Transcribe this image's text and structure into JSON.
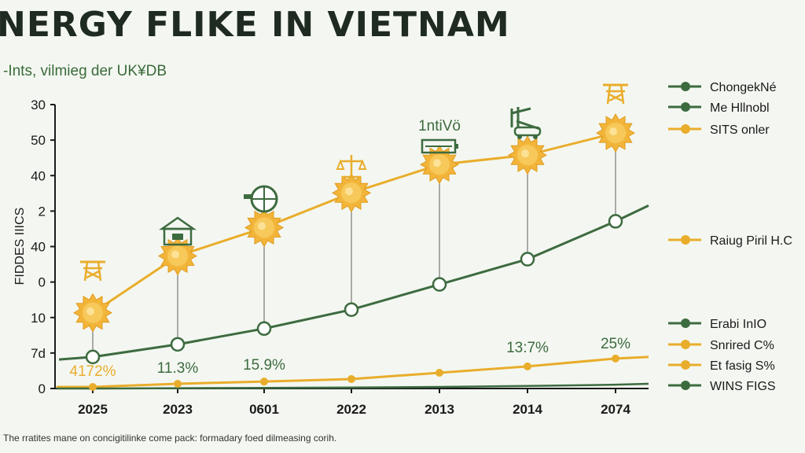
{
  "header": {
    "title": "NERGY FLIKE IN VIETNAM",
    "subtitle": "-Ints, vilmieg der UK¥DB"
  },
  "footnote": "The rratites mane on concigitilinke come pack: formadary foed dilmeasing corih.",
  "colors": {
    "orange": "#e9ad2c",
    "green": "#3d6b40",
    "axis": "#1a1a1a",
    "sun": "#f2b53a"
  },
  "chart_data": {
    "type": "line",
    "title": "NERGY FLIKE IN VIETNAM",
    "subtitle": "-Ints, vilmieg der UK¥DB",
    "ylabel": "FIDDES IIICS",
    "y_ticks": [
      "30",
      "50",
      "40",
      "2",
      "40",
      "0",
      "10",
      "7d",
      "0"
    ],
    "categories": [
      "2025",
      "2023",
      "0601",
      "2022",
      "2013",
      "2014",
      "2074"
    ],
    "series": [
      {
        "name": "SITS onler",
        "color": "#e9ad2c",
        "marker": "sun",
        "values": [
          2.4,
          4.2,
          5.1,
          6.2,
          7.1,
          7.4,
          8.1
        ]
      },
      {
        "name": "Me Hllnobl",
        "color": "#3d6b40",
        "marker": "circle",
        "values": [
          1.0,
          1.4,
          1.9,
          2.5,
          3.3,
          4.1,
          5.3
        ],
        "tail_value": 5.8
      },
      {
        "name": "Snrired C%",
        "color": "#e9ad2c",
        "marker": "dot",
        "values": [
          0.05,
          0.15,
          0.22,
          0.3,
          0.5,
          0.7,
          0.95
        ],
        "tail_value": 1.0
      },
      {
        "name": "WINS FIGS",
        "color": "#3d6b40",
        "marker": "none",
        "values": [
          0.0,
          0.01,
          0.02,
          0.03,
          0.05,
          0.08,
          0.12
        ],
        "tail_value": 0.15
      }
    ],
    "annotations": [
      {
        "category": "2025",
        "text": "4172%",
        "color": "#e9ad2c"
      },
      {
        "category": "2023",
        "text": "11.3%",
        "color": "#3d6b40"
      },
      {
        "category": "0601",
        "text": "15.9%",
        "color": "#3d6b40"
      },
      {
        "category": "2014",
        "text": "13:7%",
        "color": "#3d6b40"
      },
      {
        "category": "2074",
        "text": "25%",
        "color": "#3d6b40"
      },
      {
        "category": "2013",
        "text": "1ntiVö",
        "color": "#3d6b40",
        "small": true
      }
    ],
    "icons": [
      {
        "category": "2025",
        "name": "power-pylon-icon"
      },
      {
        "category": "2023",
        "name": "building-icon"
      },
      {
        "category": "0601",
        "name": "globe-icon"
      },
      {
        "category": "2022",
        "name": "scale-icon"
      },
      {
        "category": "2013",
        "name": "battery-icon"
      },
      {
        "category": "2014",
        "name": "wind-turbine-icon"
      },
      {
        "category": "2074",
        "name": "power-pylon-icon"
      }
    ],
    "legend_groups": [
      {
        "position": "top-right",
        "items": [
          {
            "label": "ChongekNé",
            "color": "#3d6b40"
          },
          {
            "label": "Me Hllnobl",
            "color": "#3d6b40"
          },
          {
            "label": "SITS onler",
            "color": "#e9ad2c"
          }
        ]
      },
      {
        "position": "middle-right",
        "items": [
          {
            "label": "Raiug Piril H.C",
            "color": "#e9ad2c"
          }
        ]
      },
      {
        "position": "bottom-right",
        "items": [
          {
            "label": "Erabi InIO",
            "color": "#3d6b40"
          },
          {
            "label": "Snrired C%",
            "color": "#e9ad2c"
          },
          {
            "label": "Et fasig S%",
            "color": "#e9ad2c"
          },
          {
            "label": "WINS FIGS",
            "color": "#3d6b40"
          }
        ]
      }
    ],
    "ylim": [
      0,
      9
    ],
    "grid": false
  }
}
